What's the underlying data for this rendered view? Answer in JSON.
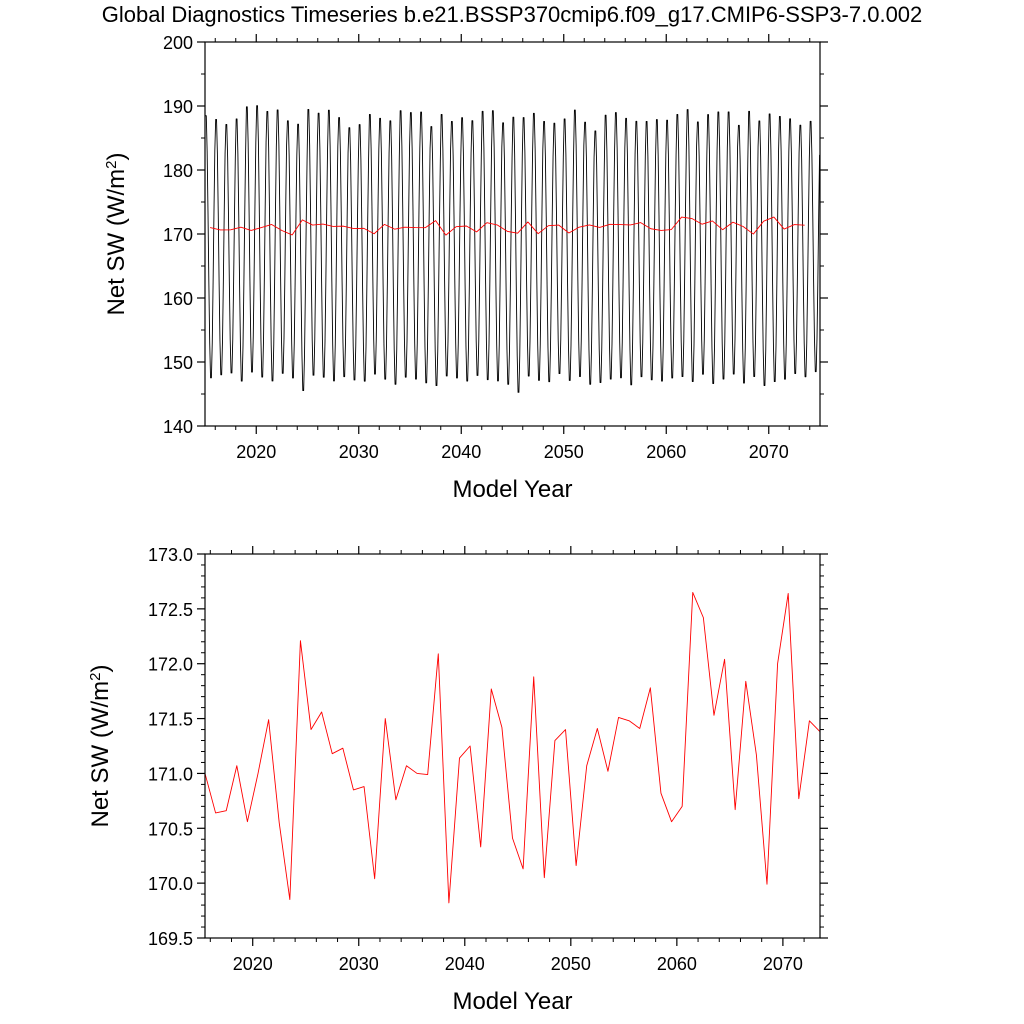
{
  "title": "Global Diagnostics Timeseries b.e21.BSSP370cmip6.f09_g17.CMIP6-SSP3-7.0.002",
  "chart_data": [
    {
      "type": "line",
      "name": "monthly-and-annual",
      "xlabel": "Model Year",
      "ylabel": "Net SW (W/m",
      "ylabel_sup": "2",
      "ylabel_close": ")",
      "xlim": [
        2015,
        2075
      ],
      "ylim": [
        140,
        200
      ],
      "xticks": [
        2020,
        2030,
        2040,
        2050,
        2060,
        2070
      ],
      "yticks": [
        140,
        150,
        160,
        170,
        180,
        190,
        200
      ],
      "ytick_labels": [
        "140",
        "150",
        "160",
        "170",
        "180",
        "190",
        "200"
      ],
      "series": [
        {
          "name": "monthly",
          "color": "#000000",
          "start_year": 2015,
          "months_per_year": 12,
          "cycle_max": [
            189.2,
            188.6,
            187.8,
            188.7,
            190.6,
            190.8,
            189.9,
            190.1,
            188.4,
            187.9,
            190.2,
            189.6,
            190.1,
            188.9,
            187.3,
            187.8,
            189.4,
            188.8,
            188.4,
            190.0,
            189.7,
            189.8,
            187.5,
            189.4,
            188.3,
            188.9,
            188.4,
            189.9,
            190.0,
            188.1,
            189.0,
            188.9,
            189.6,
            188.3,
            188.0,
            188.7,
            190.1,
            188.2,
            186.8,
            189.3,
            189.7,
            188.8,
            188.3,
            188.3,
            188.6,
            188.5,
            189.4,
            190.2,
            188.2,
            189.4,
            189.8,
            189.8,
            187.7,
            189.9,
            188.4,
            189.5,
            189.1,
            188.7,
            187.7,
            188.3
          ],
          "cycle_min": [
            146.8,
            147.3,
            147.6,
            146.3,
            147.7,
            146.9,
            146.3,
            147.5,
            146.8,
            144.8,
            147.2,
            146.9,
            146.3,
            147.0,
            146.5,
            146.3,
            147.4,
            146.6,
            145.8,
            146.9,
            146.6,
            146.0,
            145.6,
            147.1,
            146.8,
            146.3,
            147.2,
            146.5,
            146.3,
            145.8,
            144.5,
            147.1,
            146.4,
            146.2,
            147.5,
            146.4,
            147.0,
            145.8,
            146.1,
            146.6,
            146.8,
            145.7,
            147.0,
            146.5,
            146.3,
            146.8,
            147.0,
            146.2,
            147.4,
            145.9,
            146.6,
            147.4,
            146.0,
            147.0,
            145.6,
            146.2,
            146.6,
            147.5,
            147.0,
            147.8
          ]
        },
        {
          "name": "annual-mean",
          "color": "#ff0000",
          "x": [
            2015.5,
            2016.5,
            2017.5,
            2018.5,
            2019.5,
            2020.5,
            2021.5,
            2022.5,
            2023.5,
            2024.5,
            2025.5,
            2026.5,
            2027.5,
            2028.5,
            2029.5,
            2030.5,
            2031.5,
            2032.5,
            2033.5,
            2034.5,
            2035.5,
            2036.5,
            2037.5,
            2038.5,
            2039.5,
            2040.5,
            2041.5,
            2042.5,
            2043.5,
            2044.5,
            2045.5,
            2046.5,
            2047.5,
            2048.5,
            2049.5,
            2050.5,
            2051.5,
            2052.5,
            2053.5,
            2054.5,
            2055.5,
            2056.5,
            2057.5,
            2058.5,
            2059.5,
            2060.5,
            2061.5,
            2062.5,
            2063.5,
            2064.5,
            2065.5,
            2066.5,
            2067.5,
            2068.5,
            2069.5,
            2070.5,
            2071.5,
            2072.5,
            2073.5
          ],
          "values": [
            171.0,
            170.64,
            170.66,
            171.07,
            170.56,
            171.0,
            171.49,
            170.55,
            169.85,
            172.21,
            171.4,
            171.56,
            171.18,
            171.23,
            170.85,
            170.88,
            170.04,
            171.5,
            170.76,
            171.07,
            171.0,
            170.99,
            172.09,
            169.82,
            171.14,
            171.25,
            170.33,
            171.77,
            171.42,
            170.41,
            170.13,
            171.88,
            170.05,
            171.3,
            171.4,
            170.16,
            171.07,
            171.41,
            171.02,
            171.51,
            171.48,
            171.41,
            171.78,
            170.82,
            170.56,
            170.7,
            172.65,
            172.42,
            171.53,
            172.04,
            170.67,
            171.84,
            171.17,
            169.99,
            172.0,
            172.64,
            170.77,
            171.48,
            171.38
          ]
        }
      ]
    },
    {
      "type": "line",
      "name": "annual-mean",
      "xlabel": "Model Year",
      "ylabel": "Net SW (W/m",
      "ylabel_sup": "2",
      "ylabel_close": ")",
      "xlim": [
        2015.5,
        2073.5
      ],
      "ylim": [
        169.5,
        173.0
      ],
      "xticks": [
        2020,
        2030,
        2040,
        2050,
        2060,
        2070
      ],
      "yticks": [
        169.5,
        170.0,
        170.5,
        171.0,
        171.5,
        172.0,
        172.5,
        173.0
      ],
      "ytick_labels": [
        "169.5",
        "170.0",
        "170.5",
        "171.0",
        "171.5",
        "172.0",
        "172.5",
        "173.0"
      ],
      "series": [
        {
          "name": "annual-mean",
          "color": "#ff0000",
          "x": [
            2015.5,
            2016.5,
            2017.5,
            2018.5,
            2019.5,
            2020.5,
            2021.5,
            2022.5,
            2023.5,
            2024.5,
            2025.5,
            2026.5,
            2027.5,
            2028.5,
            2029.5,
            2030.5,
            2031.5,
            2032.5,
            2033.5,
            2034.5,
            2035.5,
            2036.5,
            2037.5,
            2038.5,
            2039.5,
            2040.5,
            2041.5,
            2042.5,
            2043.5,
            2044.5,
            2045.5,
            2046.5,
            2047.5,
            2048.5,
            2049.5,
            2050.5,
            2051.5,
            2052.5,
            2053.5,
            2054.5,
            2055.5,
            2056.5,
            2057.5,
            2058.5,
            2059.5,
            2060.5,
            2061.5,
            2062.5,
            2063.5,
            2064.5,
            2065.5,
            2066.5,
            2067.5,
            2068.5,
            2069.5,
            2070.5,
            2071.5,
            2072.5,
            2073.5
          ],
          "values": [
            171.0,
            170.64,
            170.66,
            171.07,
            170.56,
            171.0,
            171.49,
            170.55,
            169.85,
            172.21,
            171.4,
            171.56,
            171.18,
            171.23,
            170.85,
            170.88,
            170.04,
            171.5,
            170.76,
            171.07,
            171.0,
            170.99,
            172.09,
            169.82,
            171.14,
            171.25,
            170.33,
            171.77,
            171.42,
            170.41,
            170.13,
            171.88,
            170.05,
            171.3,
            171.4,
            170.16,
            171.07,
            171.41,
            171.02,
            171.51,
            171.48,
            171.41,
            171.78,
            170.82,
            170.56,
            170.7,
            172.65,
            172.42,
            171.53,
            172.04,
            170.67,
            171.84,
            171.17,
            169.99,
            172.0,
            172.64,
            170.77,
            171.48,
            171.38
          ]
        }
      ]
    }
  ]
}
